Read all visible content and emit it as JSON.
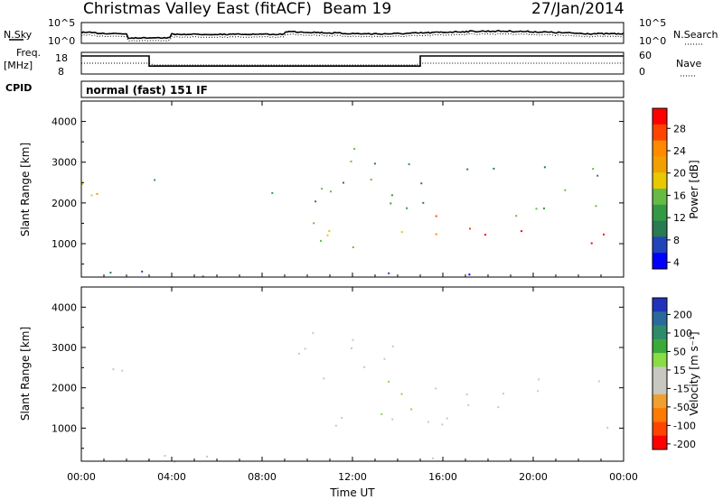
{
  "header": {
    "title": "Christmas Valley East (fitACF)",
    "beam": "Beam 19",
    "date": "27/Jan/2014"
  },
  "noise_panel": {
    "left_label": "N.Sky",
    "right_label": "N.Search",
    "ticks": [
      "10^5",
      "10^0"
    ]
  },
  "freq_panel": {
    "left_label_1": "Freq.",
    "left_label_2": "[MHz]",
    "left_ticks": [
      "18",
      "8"
    ],
    "right_label": "Nave",
    "right_ticks": [
      "60",
      "0"
    ]
  },
  "cpid": {
    "label": "CPID",
    "value": "normal (fast) 151 IF"
  },
  "power_panel": {
    "ylabel": "Slant Range [km]",
    "yticks": [
      "4000",
      "3000",
      "2000",
      "1000"
    ],
    "colorbar_label": "Power [dB]",
    "colorbar_ticks": [
      "28",
      "24",
      "20",
      "16",
      "12",
      "8",
      "4"
    ],
    "colorbar_colors": [
      "#ff0000",
      "#ff4400",
      "#ff8a00",
      "#f0a000",
      "#e8c800",
      "#66bb44",
      "#339944",
      "#2a7a52",
      "#2244bb",
      "#0000ff"
    ]
  },
  "velocity_panel": {
    "ylabel": "Slant Range [km]",
    "yticks": [
      "4000",
      "3000",
      "2000",
      "1000"
    ],
    "colorbar_label": "Velocity [m s⁻¹]",
    "colorbar_ticks": [
      "200",
      "100",
      "50",
      "15",
      "-15",
      "-50",
      "-100",
      "-200"
    ],
    "colorbar_colors": [
      "#2233bb",
      "#2a6a9a",
      "#2d8a6a",
      "#3aaa3a",
      "#88dd44",
      "#c8c8c0",
      "#c8c8c0",
      "#f0a030",
      "#ff7a00",
      "#ff4400",
      "#ff0000"
    ]
  },
  "xaxis": {
    "label": "Time UT",
    "ticks": [
      "00:00",
      "04:00",
      "08:00",
      "12:00",
      "16:00",
      "20:00",
      "00:00"
    ]
  },
  "chart_data": {
    "type": "heatmap",
    "title": "Christmas Valley East (fitACF)",
    "xlabel": "Time UT",
    "ylabel": "Slant Range [km]",
    "xlim": [
      "00:00",
      "24:00"
    ],
    "ylim": [
      180,
      4500
    ],
    "power_clim_dB": [
      0,
      30
    ],
    "velocity_clim": [
      -250,
      250
    ],
    "power_regions": [
      {
        "t0": 0.0,
        "t1": 2.0,
        "r0": 1150,
        "r1": 2600,
        "power_dB": 18
      },
      {
        "t0": 2.5,
        "t1": 3.8,
        "r0": 1900,
        "r1": 2900,
        "power_dB": 8
      },
      {
        "t0": 8.0,
        "t1": 15.0,
        "r0": 1800,
        "r1": 3500,
        "power_dB": 10
      },
      {
        "t0": 8.8,
        "t1": 15.0,
        "r0": 800,
        "r1": 1600,
        "power_dB": 14
      },
      {
        "t0": 15.0,
        "t1": 23.6,
        "r0": 950,
        "r1": 1700,
        "power_dB": 28
      },
      {
        "t0": 15.0,
        "t1": 23.6,
        "r0": 1700,
        "r1": 3000,
        "power_dB": 10
      },
      {
        "t0": 0.0,
        "t1": 24.0,
        "r0": 180,
        "r1": 350,
        "power_dB": 6
      }
    ],
    "velocity_regions": [
      {
        "t0": 0.0,
        "t1": 2.0,
        "r0": 1500,
        "r1": 2600,
        "velocity": -30
      },
      {
        "t0": 8.5,
        "t1": 14.0,
        "r0": 1900,
        "r1": 3400,
        "velocity": 0
      },
      {
        "t0": 9.0,
        "t1": 14.0,
        "r0": 1000,
        "r1": 1500,
        "velocity": 0
      },
      {
        "t0": 13.2,
        "t1": 15.0,
        "r0": 800,
        "r1": 2700,
        "velocity": 40
      },
      {
        "t0": 15.0,
        "t1": 23.6,
        "r0": 1000,
        "r1": 2300,
        "velocity": 0
      },
      {
        "t0": 0.0,
        "t1": 24.0,
        "r0": 180,
        "r1": 350,
        "velocity": -60
      }
    ],
    "freq_MHz": [
      {
        "t0": 0.0,
        "t1": 3.0,
        "value": 18
      },
      {
        "t0": 3.0,
        "t1": 15.0,
        "value": 11
      },
      {
        "t0": 15.0,
        "t1": 24.0,
        "value": 18
      }
    ]
  }
}
